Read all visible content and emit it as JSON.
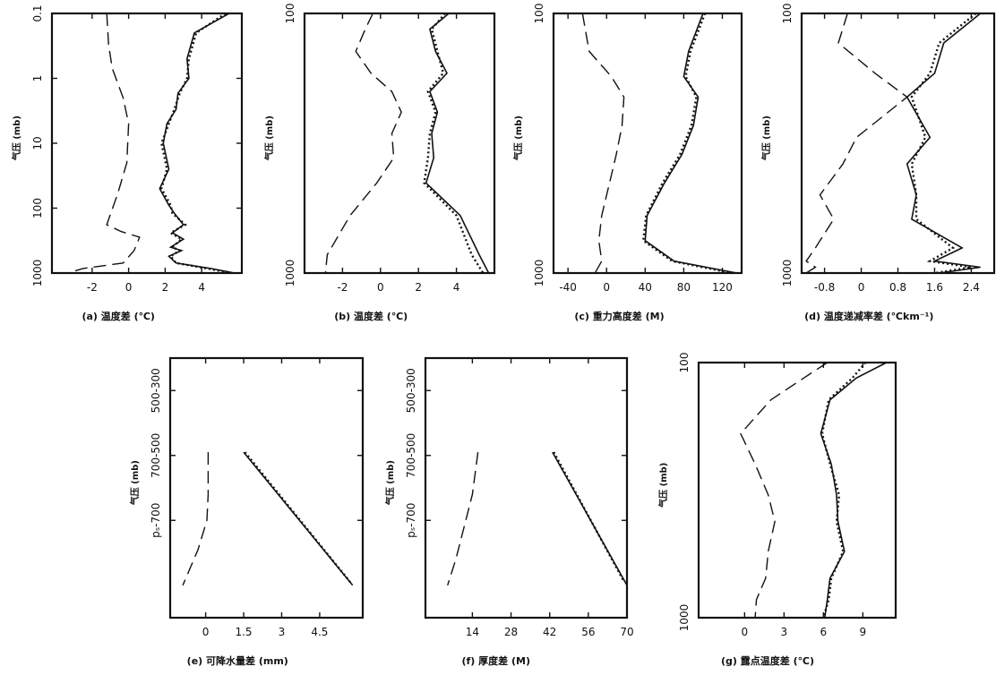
{
  "chart_data": [
    {
      "id": "a",
      "type": "line",
      "yscale": "log",
      "caption": "(a) 温度差 (℃)",
      "ylabel": "气压 (mb)",
      "xlim": [
        -4.2,
        6.2
      ],
      "ylim": [
        0.1,
        1000
      ],
      "xticks": [
        "-2",
        "0",
        "2",
        "4"
      ],
      "xtick_values": [
        -2,
        0,
        2,
        4
      ],
      "yticks": [
        "0.1",
        "1",
        "10",
        "100",
        "1000"
      ],
      "ytick_values": [
        0.1,
        1,
        10,
        100,
        1000
      ],
      "series": [
        {
          "style": "dashed",
          "x": [
            -1.2,
            -1.1,
            -0.9,
            -0.3,
            0,
            -0.1,
            -0.6,
            -1.2,
            -0.4,
            0.6,
            0.3,
            -0.3,
            -2.5,
            -3.3
          ],
          "y": [
            0.1,
            0.3,
            0.7,
            2,
            5,
            20,
            60,
            180,
            230,
            280,
            450,
            700,
            850,
            1000
          ]
        },
        {
          "style": "solid",
          "x": [
            5.5,
            3.6,
            3.2,
            3.3,
            2.7,
            2.6,
            2.1,
            1.9,
            2.2,
            1.7,
            2.2,
            2.5,
            3.0,
            2.4,
            3.0,
            2.3,
            2.9,
            2.2,
            2.6,
            4.5,
            5.8
          ],
          "y": [
            0.1,
            0.2,
            0.5,
            1,
            1.7,
            3,
            5,
            10,
            25,
            50,
            90,
            120,
            180,
            240,
            300,
            400,
            450,
            550,
            700,
            850,
            1000
          ]
        },
        {
          "style": "dotted",
          "x": [
            5.3,
            3.7,
            3.3,
            3.2,
            2.8,
            2.5,
            2.2,
            1.8,
            2.1,
            1.8,
            2.3,
            2.4,
            3.1,
            2.3,
            2.9,
            2.4,
            2.8,
            2.3,
            2.6,
            4.3,
            5.6
          ],
          "y": [
            0.1,
            0.2,
            0.5,
            1,
            1.7,
            3,
            5,
            10,
            25,
            50,
            90,
            120,
            180,
            240,
            300,
            400,
            450,
            550,
            700,
            850,
            1000
          ]
        }
      ]
    },
    {
      "id": "b",
      "type": "line",
      "yscale": "log",
      "caption": "(b) 温度差 (℃)",
      "ylabel": "气压 (mb)",
      "xlim": [
        -4,
        6
      ],
      "ylim": [
        100,
        1000
      ],
      "xticks": [
        "-2",
        "0",
        "2",
        "4"
      ],
      "xtick_values": [
        -2,
        0,
        2,
        4
      ],
      "yticks": [
        "100",
        "1000"
      ],
      "ytick_values": [
        100,
        1000
      ],
      "series": [
        {
          "style": "dashed",
          "x": [
            -0.4,
            -0.8,
            -1.3,
            -0.5,
            0.6,
            1.1,
            0.6,
            0.7,
            -0.2,
            -1.6,
            -2.8,
            -2.9
          ],
          "y": [
            100,
            115,
            140,
            170,
            200,
            240,
            290,
            360,
            450,
            600,
            850,
            1000
          ]
        },
        {
          "style": "solid",
          "x": [
            3.6,
            2.6,
            2.9,
            3.5,
            2.6,
            3.0,
            2.7,
            2.8,
            2.4,
            4.2,
            5.2,
            5.7
          ],
          "y": [
            100,
            115,
            140,
            170,
            200,
            240,
            290,
            360,
            450,
            600,
            850,
            1000
          ]
        },
        {
          "style": "dotted",
          "x": [
            3.4,
            2.7,
            3.0,
            3.3,
            2.5,
            2.9,
            2.6,
            2.5,
            2.3,
            4.0,
            4.8,
            5.4
          ],
          "y": [
            100,
            115,
            140,
            170,
            200,
            240,
            290,
            360,
            450,
            600,
            850,
            1000
          ]
        }
      ]
    },
    {
      "id": "c",
      "type": "line",
      "yscale": "log",
      "caption": "(c) 重力高度差 (M)",
      "ylabel": "气压 (mb)",
      "xlim": [
        -55,
        140
      ],
      "ylim": [
        100,
        1000
      ],
      "xticks": [
        "-40",
        "0",
        "40",
        "80",
        "120"
      ],
      "xtick_values": [
        -40,
        0,
        40,
        80,
        120
      ],
      "yticks": [
        "100",
        "1000"
      ],
      "ytick_values": [
        100,
        1000
      ],
      "series": [
        {
          "style": "dashed",
          "x": [
            -25,
            -18,
            5,
            18,
            16,
            10,
            3,
            -5,
            -8,
            -5,
            -12
          ],
          "y": [
            100,
            140,
            175,
            210,
            270,
            350,
            450,
            600,
            750,
            900,
            1000
          ]
        },
        {
          "style": "solid",
          "x": [
            100,
            85,
            80,
            95,
            90,
            78,
            60,
            42,
            40,
            70,
            135
          ],
          "y": [
            100,
            140,
            175,
            210,
            270,
            350,
            450,
            600,
            750,
            900,
            1000
          ]
        },
        {
          "style": "dotted",
          "x": [
            102,
            87,
            82,
            93,
            88,
            76,
            58,
            41,
            38,
            68,
            130
          ],
          "y": [
            100,
            140,
            175,
            210,
            270,
            350,
            450,
            600,
            750,
            900,
            1000
          ]
        }
      ]
    },
    {
      "id": "d",
      "type": "line",
      "yscale": "log",
      "caption": "(d) 温度递减率差 (℃km⁻¹)",
      "ylabel": "气压 (mb)",
      "xlim": [
        -1.3,
        2.9
      ],
      "ylim": [
        100,
        1000
      ],
      "xticks": [
        "-0.8",
        "0",
        "0.8",
        "1.6",
        "2.4"
      ],
      "xtick_values": [
        -0.8,
        0,
        0.8,
        1.6,
        2.4
      ],
      "yticks": [
        "100",
        "1000"
      ],
      "ytick_values": [
        100,
        1000
      ],
      "series": [
        {
          "style": "dashed",
          "x": [
            -0.3,
            -0.5,
            0.3,
            1.0,
            -0.1,
            -0.4,
            -0.9,
            -0.6,
            -1.0,
            -1.2,
            -1.0,
            -1.2
          ],
          "y": [
            100,
            130,
            170,
            210,
            300,
            380,
            500,
            620,
            800,
            900,
            950,
            1000
          ]
        },
        {
          "style": "solid",
          "x": [
            2.6,
            1.8,
            1.6,
            1.0,
            1.5,
            1.0,
            1.2,
            1.1,
            2.2,
            1.6,
            2.6,
            1.7
          ],
          "y": [
            100,
            130,
            170,
            210,
            300,
            380,
            500,
            620,
            800,
            900,
            950,
            1000
          ]
        },
        {
          "style": "dotted",
          "x": [
            2.5,
            1.7,
            1.5,
            1.1,
            1.4,
            1.1,
            1.2,
            1.2,
            2.0,
            1.5,
            2.4,
            1.6
          ],
          "y": [
            100,
            130,
            170,
            210,
            300,
            380,
            500,
            620,
            800,
            900,
            950,
            1000
          ]
        }
      ]
    },
    {
      "id": "e",
      "type": "line",
      "yscale": "category",
      "caption": "(e) 可降水量差 (mm)",
      "ylabel": "气压 (mb)",
      "xlim": [
        -1.4,
        6.2
      ],
      "ylim": [
        -0.5,
        3.5
      ],
      "xticks": [
        "0",
        "1.5",
        "3",
        "4.5"
      ],
      "xtick_values": [
        0,
        1.5,
        3,
        4.5
      ],
      "yticks": [
        "500-300",
        "700-500",
        "pₛ-700"
      ],
      "ytick_values": [
        0,
        1,
        2
      ],
      "series": [
        {
          "style": "dashed",
          "x": [
            0.1,
            0.1,
            0.05,
            -0.3,
            -0.9
          ],
          "y": [
            0.95,
            1.6,
            2.0,
            2.45,
            3.0
          ]
        },
        {
          "style": "solid",
          "x": [
            1.5,
            5.8
          ],
          "y": [
            0.95,
            3.0
          ]
        },
        {
          "style": "dotted",
          "x": [
            1.55,
            5.7
          ],
          "y": [
            0.95,
            2.95
          ]
        }
      ]
    },
    {
      "id": "f",
      "type": "line",
      "yscale": "category",
      "caption": "(f) 厚度差 (M)",
      "ylabel": "气压 (mb)",
      "xlim": [
        -3,
        70
      ],
      "ylim": [
        -0.5,
        3.5
      ],
      "xticks": [
        "14",
        "28",
        "42",
        "56",
        "70"
      ],
      "xtick_values": [
        14,
        28,
        42,
        56,
        70
      ],
      "yticks": [
        "500-300",
        "700-500",
        "pₛ-700"
      ],
      "ytick_values": [
        0,
        1,
        2
      ],
      "series": [
        {
          "style": "dashed",
          "x": [
            16,
            14,
            11,
            8,
            5
          ],
          "y": [
            0.95,
            1.6,
            2.1,
            2.6,
            3.0
          ]
        },
        {
          "style": "solid",
          "x": [
            43,
            70
          ],
          "y": [
            0.95,
            3.0
          ]
        },
        {
          "style": "dotted",
          "x": [
            43.5,
            69
          ],
          "y": [
            0.95,
            2.95
          ]
        }
      ]
    },
    {
      "id": "g",
      "type": "line",
      "yscale": "log",
      "caption": "(g) 露点温度差 (℃)",
      "ylabel": "气压 (mb)",
      "xlim": [
        -3.5,
        11.5
      ],
      "ylim": [
        100,
        1000
      ],
      "xticks": [
        "0",
        "3",
        "6",
        "9"
      ],
      "xtick_values": [
        0,
        3,
        6,
        9
      ],
      "yticks": [
        "100",
        "1000"
      ],
      "ytick_values": [
        100,
        1000
      ],
      "series": [
        {
          "style": "dashed",
          "x": [
            6.3,
            4.5,
            2.0,
            -0.3,
            0.8,
            1.8,
            2.3,
            1.8,
            1.6,
            0.9,
            0.8
          ],
          "y": [
            100,
            115,
            140,
            190,
            250,
            330,
            420,
            550,
            700,
            850,
            1000
          ]
        },
        {
          "style": "solid",
          "x": [
            10.8,
            8.5,
            6.5,
            5.8,
            6.6,
            7.0,
            7.1,
            7.6,
            6.5,
            6.3,
            6.1
          ],
          "y": [
            100,
            115,
            140,
            190,
            250,
            330,
            420,
            550,
            700,
            850,
            1000
          ]
        },
        {
          "style": "dotted",
          "x": [
            9.2,
            8.2,
            6.4,
            5.9,
            6.5,
            7.2,
            7.0,
            7.5,
            6.6,
            6.4,
            6.0
          ],
          "y": [
            100,
            115,
            140,
            190,
            250,
            330,
            420,
            550,
            700,
            850,
            1000
          ]
        }
      ]
    }
  ]
}
